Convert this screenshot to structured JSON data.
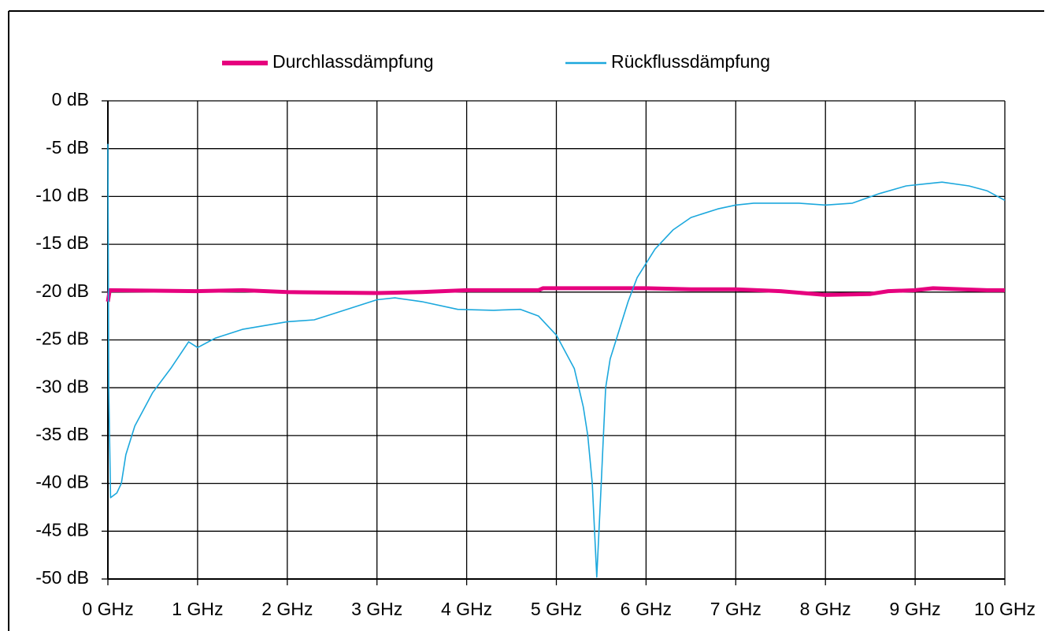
{
  "chart_data": {
    "type": "line",
    "xlim": [
      0,
      10
    ],
    "ylim": [
      -50,
      0
    ],
    "grid": true,
    "xticks": [
      {
        "value": 0,
        "label": "0 GHz"
      },
      {
        "value": 1,
        "label": "1 GHz"
      },
      {
        "value": 2,
        "label": "2 GHz"
      },
      {
        "value": 3,
        "label": "3 GHz"
      },
      {
        "value": 4,
        "label": "4 GHz"
      },
      {
        "value": 5,
        "label": "5 GHz"
      },
      {
        "value": 6,
        "label": "6 GHz"
      },
      {
        "value": 7,
        "label": "7 GHz"
      },
      {
        "value": 8,
        "label": "8 GHz"
      },
      {
        "value": 9,
        "label": "9 GHz"
      },
      {
        "value": 10,
        "label": "10 GHz"
      }
    ],
    "yticks": [
      {
        "value": 0,
        "label": "0 dB"
      },
      {
        "value": -5,
        "label": "-5 dB"
      },
      {
        "value": -10,
        "label": "-10 dB"
      },
      {
        "value": -15,
        "label": "-15 dB"
      },
      {
        "value": -20,
        "label": "-20 dB"
      },
      {
        "value": -25,
        "label": "-25 dB"
      },
      {
        "value": -30,
        "label": "-30 dB"
      },
      {
        "value": -35,
        "label": "-35 dB"
      },
      {
        "value": -40,
        "label": "-40 dB"
      },
      {
        "value": -45,
        "label": "-45 dB"
      },
      {
        "value": -50,
        "label": "-50 dB"
      }
    ],
    "series": [
      {
        "name": "Durchlassdämpfung",
        "color": "#e6007e",
        "x": [
          0,
          0.02,
          1,
          1.5,
          2,
          3,
          3.5,
          4,
          4.8,
          4.85,
          6,
          6.5,
          7,
          7.5,
          8,
          8.5,
          8.7,
          9,
          9.2,
          9.8,
          10
        ],
        "values": [
          -21,
          -19.8,
          -19.9,
          -19.8,
          -20,
          -20.1,
          -20,
          -19.8,
          -19.8,
          -19.6,
          -19.6,
          -19.7,
          -19.7,
          -19.9,
          -20.3,
          -20.2,
          -19.9,
          -19.8,
          -19.6,
          -19.8,
          -19.8
        ]
      },
      {
        "name": "Rückflussdämpfung",
        "color": "#1ca8dd",
        "x": [
          0,
          0.01,
          0.03,
          0.1,
          0.15,
          0.2,
          0.3,
          0.5,
          0.7,
          0.9,
          1,
          1.2,
          1.5,
          2,
          2.3,
          2.6,
          3,
          3.2,
          3.5,
          3.9,
          4.3,
          4.6,
          4.8,
          5,
          5.2,
          5.3,
          5.35,
          5.4,
          5.45,
          5.5,
          5.52,
          5.55,
          5.6,
          5.7,
          5.8,
          5.9,
          6.1,
          6.3,
          6.5,
          6.8,
          7,
          7.2,
          7.7,
          8,
          8.3,
          8.6,
          8.9,
          9.1,
          9.3,
          9.6,
          9.8,
          10
        ],
        "values": [
          -4.5,
          -30,
          -41.5,
          -41,
          -40,
          -37,
          -34,
          -30.5,
          -28,
          -25.2,
          -25.8,
          -24.8,
          -23.9,
          -23.1,
          -22.9,
          -22,
          -20.8,
          -20.6,
          -21,
          -21.8,
          -21.9,
          -21.8,
          -22.5,
          -24.5,
          -28,
          -32,
          -35,
          -40,
          -49.8,
          -40,
          -36,
          -30,
          -27,
          -24,
          -21,
          -18.5,
          -15.5,
          -13.5,
          -12.2,
          -11.3,
          -10.9,
          -10.7,
          -10.7,
          -10.9,
          -10.7,
          -9.7,
          -8.9,
          -8.7,
          -8.5,
          -8.9,
          -9.4,
          -10.4
        ]
      }
    ]
  }
}
